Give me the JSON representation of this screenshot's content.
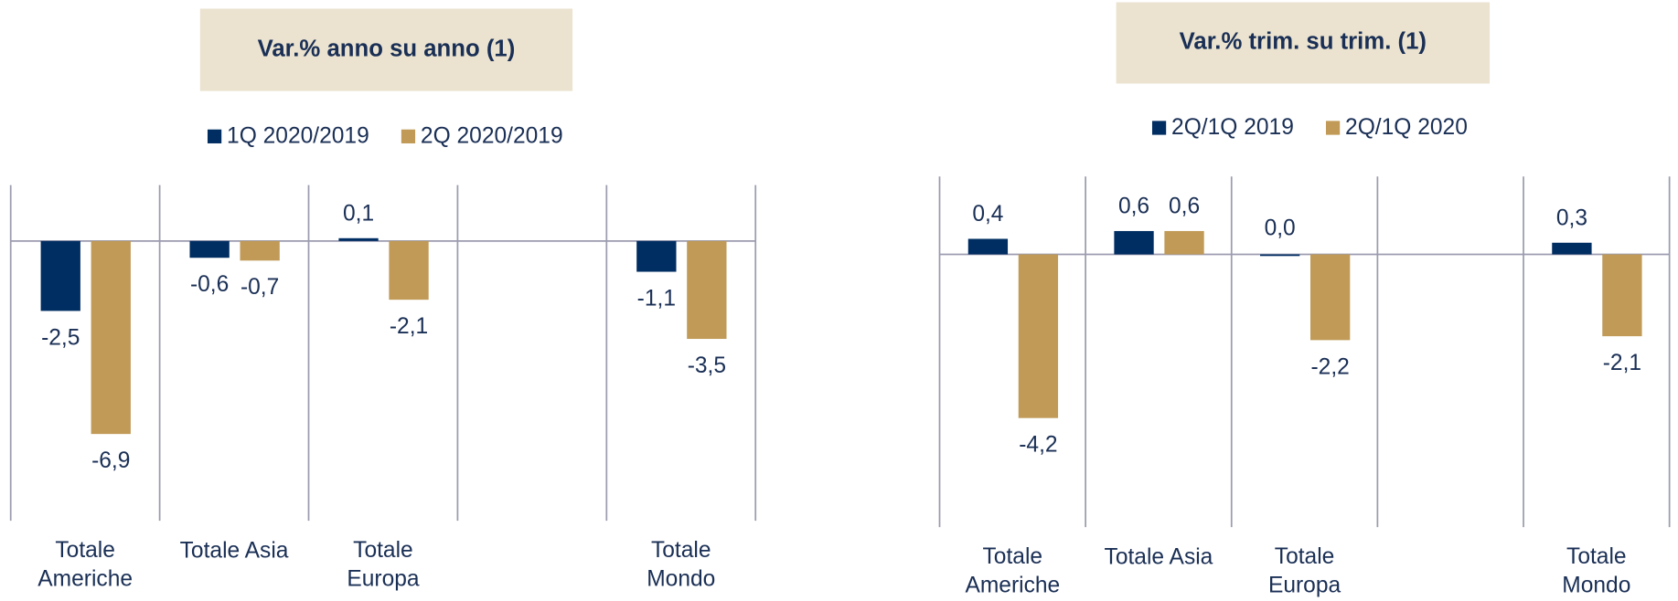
{
  "chart_data": [
    {
      "type": "bar",
      "title": "Var.% anno su anno (1)",
      "categories": [
        "Totale Americhe",
        "Totale Asia",
        "Totale Europa",
        null,
        "Totale Mondo"
      ],
      "series": [
        {
          "name": "1Q 2020/2019",
          "color": "#002d62",
          "values": [
            -2.5,
            -0.6,
            0.1,
            null,
            -1.1
          ],
          "value_labels": [
            "-2,5",
            "-0,6",
            "0,1",
            null,
            "-1,1"
          ]
        },
        {
          "name": "2Q 2020/2019",
          "color": "#c09a56",
          "values": [
            -6.9,
            -0.7,
            -2.1,
            null,
            -3.5
          ],
          "value_labels": [
            "-6,9",
            "-0,7",
            "-2,1",
            null,
            "-3,5"
          ]
        }
      ],
      "ylim": [
        -10,
        2
      ]
    },
    {
      "type": "bar",
      "title": "Var.% trim. su trim. (1)",
      "categories": [
        "Totale Americhe",
        "Totale Asia",
        "Totale Europa",
        null,
        "Totale Mondo"
      ],
      "series": [
        {
          "name": "2Q/1Q 2019",
          "color": "#002d62",
          "values": [
            0.4,
            0.6,
            0.0,
            null,
            0.3
          ],
          "value_labels": [
            "0,4",
            "0,6",
            "0,0",
            null,
            "0,3"
          ]
        },
        {
          "name": "2Q/1Q 2020",
          "color": "#c09a56",
          "values": [
            -4.2,
            0.6,
            -2.2,
            null,
            -2.1
          ],
          "value_labels": [
            "-4,2",
            "0,6",
            "-2,2",
            null,
            "-2,1"
          ]
        }
      ],
      "ylim": [
        -7,
        2
      ]
    }
  ]
}
